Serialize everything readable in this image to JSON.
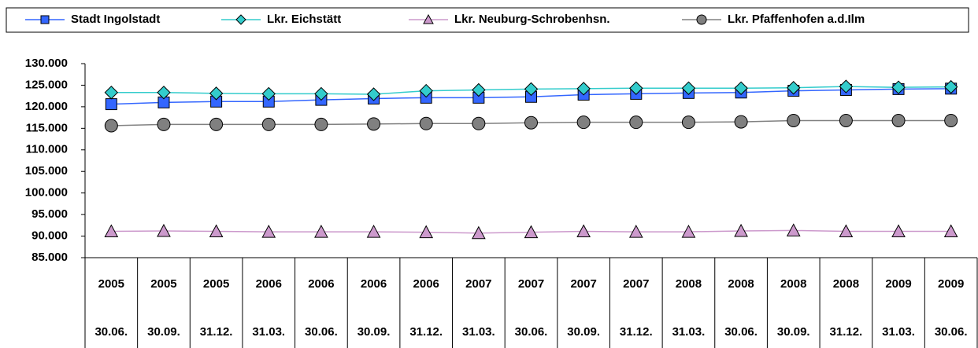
{
  "chart_data": {
    "type": "line",
    "categories": [
      "30.06.",
      "30.09.",
      "31.12.",
      "31.03.",
      "30.06.",
      "30.09.",
      "31.12.",
      "31.03.",
      "30.06.",
      "30.09.",
      "31.12.",
      "31.03.",
      "30.06.",
      "30.09.",
      "31.12.",
      "31.03.",
      "30.06."
    ],
    "category_years": [
      "2005",
      "2005",
      "2005",
      "2006",
      "2006",
      "2006",
      "2006",
      "2007",
      "2007",
      "2007",
      "2007",
      "2008",
      "2008",
      "2008",
      "2008",
      "2009",
      "2009"
    ],
    "series": [
      {
        "name": "Stadt Ingolstadt",
        "color": "#3366ff",
        "marker": "square",
        "values": [
          120600,
          121000,
          121200,
          121200,
          121600,
          121900,
          122100,
          122100,
          122300,
          122800,
          123000,
          123200,
          123300,
          123700,
          123900,
          124100,
          124200
        ]
      },
      {
        "name": "Lkr. Eichstätt",
        "color": "#33cccc",
        "marker": "diamond",
        "values": [
          123300,
          123300,
          123100,
          123000,
          123000,
          122900,
          123700,
          123900,
          124100,
          124200,
          124300,
          124300,
          124300,
          124400,
          124700,
          124500,
          124600
        ]
      },
      {
        "name": "Lkr. Neuburg-Schrobenhsn.",
        "color": "#cc99cc",
        "marker": "triangle",
        "values": [
          91100,
          91200,
          91100,
          91000,
          91000,
          91000,
          90900,
          90700,
          90900,
          91100,
          91000,
          91000,
          91200,
          91300,
          91100,
          91100,
          91100
        ]
      },
      {
        "name": "Lkr. Pfaffenhofen a.d.Ilm",
        "color": "#808080",
        "marker": "circle",
        "values": [
          115600,
          115900,
          115900,
          115900,
          115900,
          116000,
          116100,
          116100,
          116300,
          116400,
          116400,
          116400,
          116500,
          116800,
          116800,
          116800,
          116800
        ]
      }
    ],
    "ylim": [
      85000,
      130000
    ],
    "yticks": [
      {
        "value": 85000,
        "label": "85.000"
      },
      {
        "value": 90000,
        "label": "90.000"
      },
      {
        "value": 95000,
        "label": "95.000"
      },
      {
        "value": 100000,
        "label": "100.000"
      },
      {
        "value": 105000,
        "label": "105.000"
      },
      {
        "value": 110000,
        "label": "110.000"
      },
      {
        "value": 115000,
        "label": "115.000"
      },
      {
        "value": 120000,
        "label": "120.000"
      },
      {
        "value": 125000,
        "label": "125.000"
      },
      {
        "value": 130000,
        "label": "130.000"
      }
    ],
    "grid": false,
    "legend": "top"
  }
}
